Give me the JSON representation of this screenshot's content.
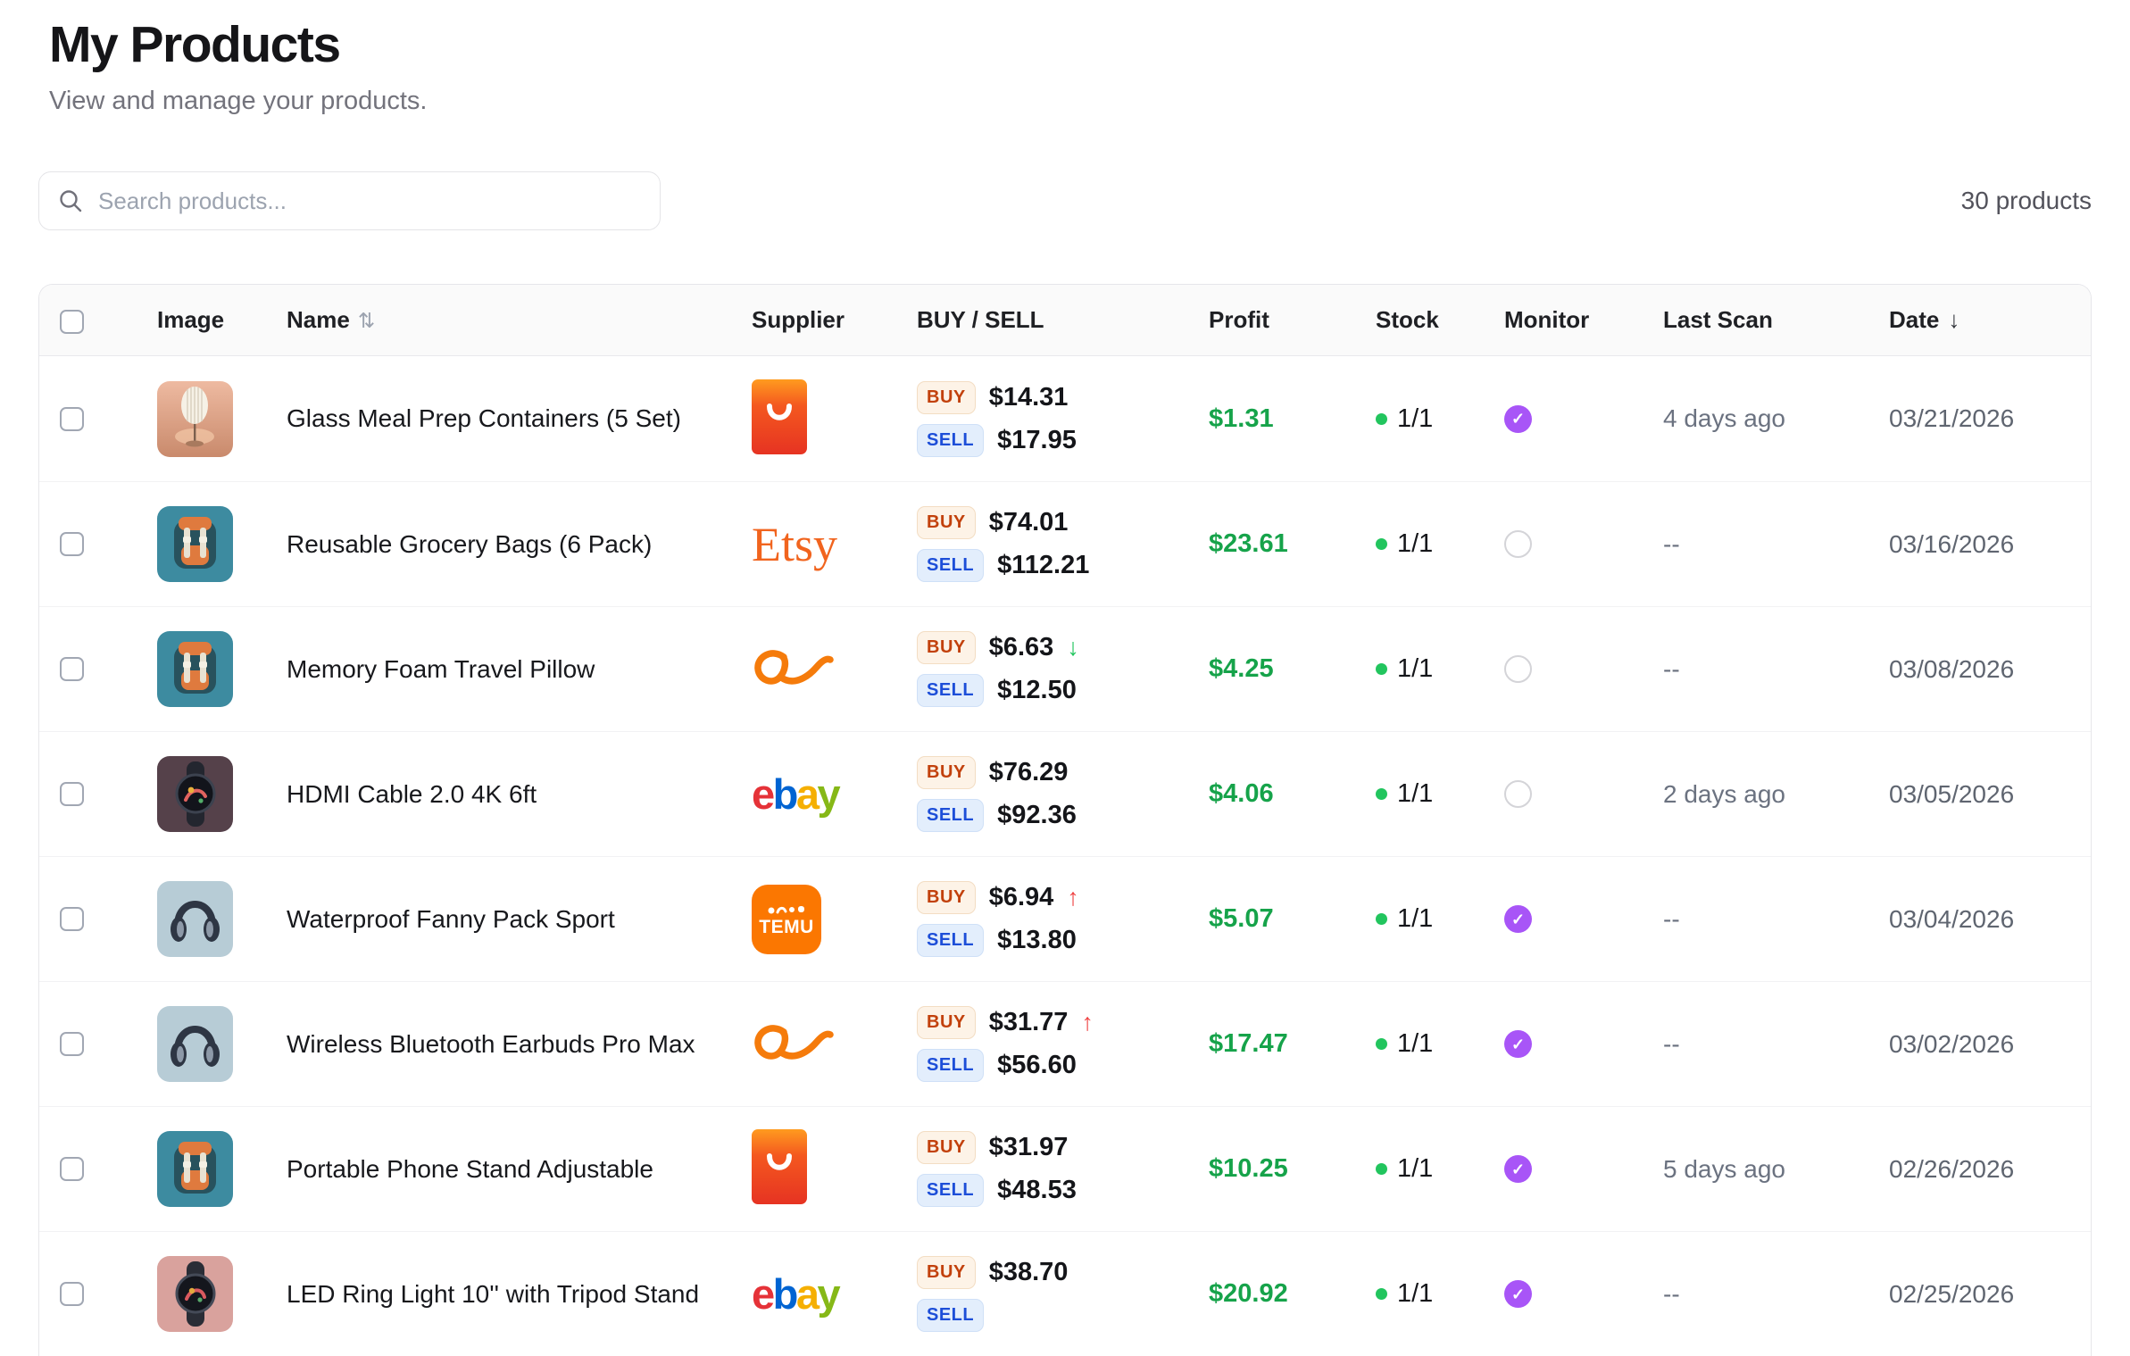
{
  "page": {
    "title": "My Products",
    "subtitle": "View and manage your products."
  },
  "toolbar": {
    "search_placeholder": "Search products...",
    "products_count": "30 products"
  },
  "icons": {
    "sort_updown": "⇅",
    "sort_down": "↓",
    "trend_up": "↑",
    "trend_down": "↓",
    "check": "✓",
    "search": "magnifier"
  },
  "colors": {
    "accent_purple": "#a855f7",
    "profit_green": "#16a34a",
    "stock_green": "#22c55e",
    "buy_text": "#c2410c",
    "buy_bg": "#fdf3e7",
    "sell_text": "#1d4ed8",
    "sell_bg": "#e3eefc",
    "trend_up_red": "#ef4444",
    "trend_down_green": "#22c55e",
    "etsy_orange": "#f1641e",
    "temu_orange": "#fb7701",
    "ebay_colors": [
      "#e53238",
      "#0064d2",
      "#f5af02",
      "#86b817"
    ]
  },
  "table": {
    "headers": {
      "image": "Image",
      "name": "Name",
      "supplier": "Supplier",
      "buy_sell": "BUY / SELL",
      "profit": "Profit",
      "stock": "Stock",
      "monitor": "Monitor",
      "last_scan": "Last Scan",
      "date": "Date"
    },
    "badges": {
      "buy": "BUY",
      "sell": "SELL"
    },
    "supplier_labels": {
      "etsy": "Etsy",
      "ebay": "ebay",
      "temu": "TEMU"
    },
    "rows": [
      {
        "name": "Glass Meal Prep Containers (5 Set)",
        "image": "lamp",
        "supplier": "aliexpress",
        "buy_price": "$14.31",
        "buy_trend": "none",
        "sell_price": "$17.95",
        "profit": "$1.31",
        "stock": "1/1",
        "monitored": true,
        "last_scan": "4 days ago",
        "date": "03/21/2026"
      },
      {
        "name": "Reusable Grocery Bags (6 Pack)",
        "image": "backpack",
        "supplier": "etsy",
        "buy_price": "$74.01",
        "buy_trend": "none",
        "sell_price": "$112.21",
        "profit": "$23.61",
        "stock": "1/1",
        "monitored": false,
        "last_scan": "--",
        "date": "03/16/2026"
      },
      {
        "name": "Memory Foam Travel Pillow",
        "image": "backpack",
        "supplier": "alibaba",
        "buy_price": "$6.63",
        "buy_trend": "down",
        "sell_price": "$12.50",
        "profit": "$4.25",
        "stock": "1/1",
        "monitored": false,
        "last_scan": "--",
        "date": "03/08/2026"
      },
      {
        "name": "HDMI Cable 2.0 4K 6ft",
        "image": "smartwatch-dark",
        "supplier": "ebay",
        "buy_price": "$76.29",
        "buy_trend": "none",
        "sell_price": "$92.36",
        "profit": "$4.06",
        "stock": "1/1",
        "monitored": false,
        "last_scan": "2 days ago",
        "date": "03/05/2026"
      },
      {
        "name": "Waterproof Fanny Pack Sport",
        "image": "headphones",
        "supplier": "temu",
        "buy_price": "$6.94",
        "buy_trend": "up",
        "sell_price": "$13.80",
        "profit": "$5.07",
        "stock": "1/1",
        "monitored": true,
        "last_scan": "--",
        "date": "03/04/2026"
      },
      {
        "name": "Wireless Bluetooth Earbuds Pro Max",
        "image": "headphones",
        "supplier": "alibaba",
        "buy_price": "$31.77",
        "buy_trend": "up",
        "sell_price": "$56.60",
        "profit": "$17.47",
        "stock": "1/1",
        "monitored": true,
        "last_scan": "--",
        "date": "03/02/2026"
      },
      {
        "name": "Portable Phone Stand Adjustable",
        "image": "backpack",
        "supplier": "aliexpress",
        "buy_price": "$31.97",
        "buy_trend": "none",
        "sell_price": "$48.53",
        "profit": "$10.25",
        "stock": "1/1",
        "monitored": true,
        "last_scan": "5 days ago",
        "date": "02/26/2026"
      },
      {
        "name": "LED Ring Light 10'' with Tripod Stand",
        "image": "smartwatch-pink",
        "supplier": "ebay",
        "buy_price": "$38.70",
        "buy_trend": "none",
        "sell_price": "",
        "profit": "$20.92",
        "stock": "1/1",
        "monitored": true,
        "last_scan": "--",
        "date": "02/25/2026"
      }
    ]
  }
}
